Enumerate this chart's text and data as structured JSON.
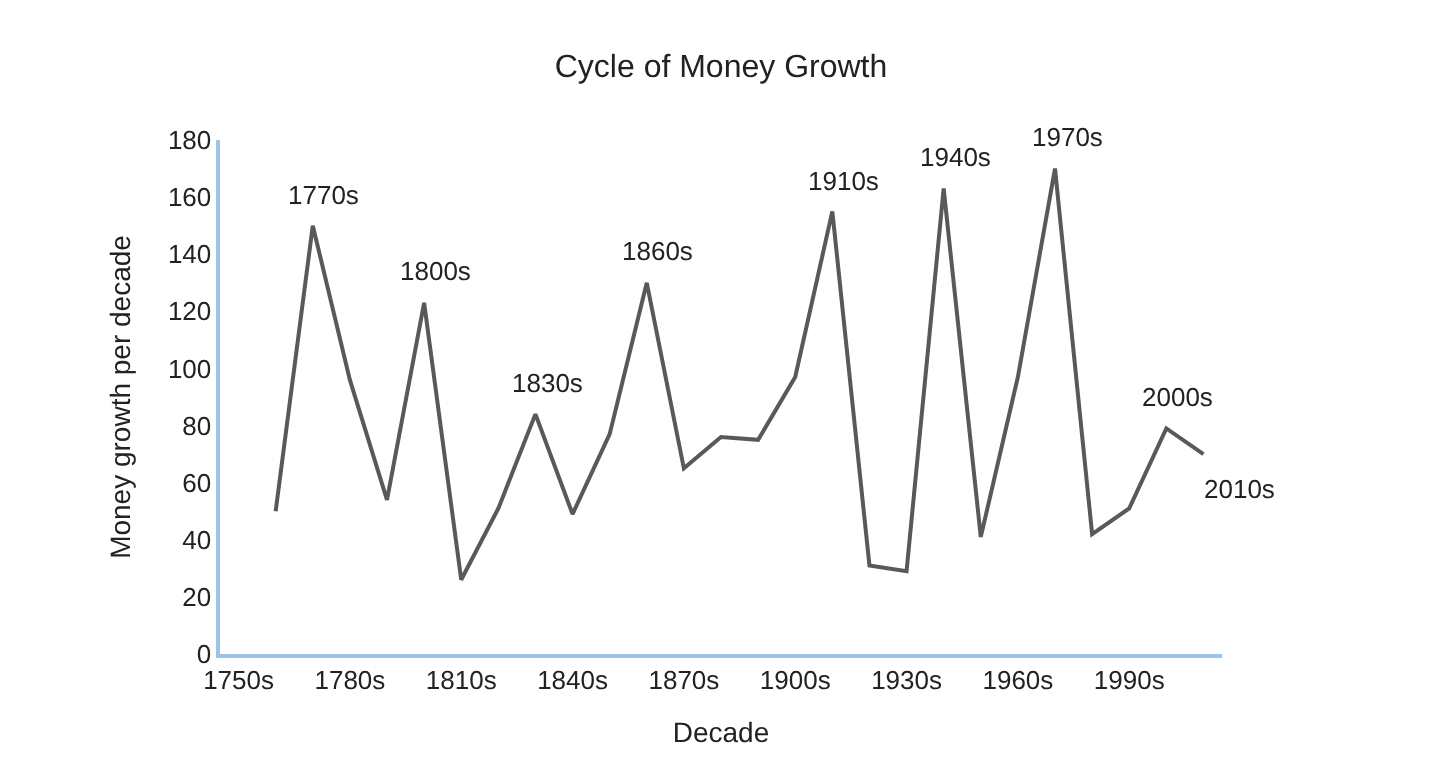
{
  "chart_data": {
    "type": "line",
    "title": "Cycle of Money Growth",
    "xlabel": "Decade",
    "ylabel": "Money growth per decade",
    "x": [
      1760,
      1770,
      1780,
      1790,
      1800,
      1810,
      1820,
      1830,
      1840,
      1850,
      1860,
      1870,
      1880,
      1890,
      1900,
      1910,
      1920,
      1930,
      1940,
      1950,
      1960,
      1970,
      1980,
      1990,
      2000,
      2010
    ],
    "series": [
      {
        "color": "#595959",
        "values": [
          50,
          150,
          96,
          54,
          123,
          26,
          51,
          84,
          49,
          77,
          130,
          65,
          76,
          75,
          97,
          155,
          31,
          29,
          163,
          41,
          97,
          170,
          42,
          51,
          79,
          70
        ]
      }
    ],
    "xlim": [
      1745,
      2015
    ],
    "xticks": [
      {
        "value": 1750,
        "label": "1750s"
      },
      {
        "value": 1780,
        "label": "1780s"
      },
      {
        "value": 1810,
        "label": "1810s"
      },
      {
        "value": 1840,
        "label": "1840s"
      },
      {
        "value": 1870,
        "label": "1870s"
      },
      {
        "value": 1900,
        "label": "1900s"
      },
      {
        "value": 1930,
        "label": "1930s"
      },
      {
        "value": 1960,
        "label": "1960s"
      },
      {
        "value": 1990,
        "label": "1990s"
      }
    ],
    "ylim": [
      0,
      180
    ],
    "yticks": [
      0,
      20,
      40,
      60,
      80,
      100,
      120,
      140,
      160,
      180
    ],
    "marker": "none",
    "line_style": "solid",
    "annotations": [
      {
        "text": "1770s",
        "x": 1770,
        "y": 150
      },
      {
        "text": "1800s",
        "x": 1800,
        "y": 123
      },
      {
        "text": "1830s",
        "x": 1830,
        "y": 84
      },
      {
        "text": "1860s",
        "x": 1860,
        "y": 130
      },
      {
        "text": "1910s",
        "x": 1910,
        "y": 155
      },
      {
        "text": "1940s",
        "x": 1940,
        "y": 163
      },
      {
        "text": "1970s",
        "x": 1970,
        "y": 170
      },
      {
        "text": "2000s",
        "x": 2000,
        "y": 79
      },
      {
        "text": "2010s",
        "x": 2010,
        "y": 70
      }
    ]
  }
}
